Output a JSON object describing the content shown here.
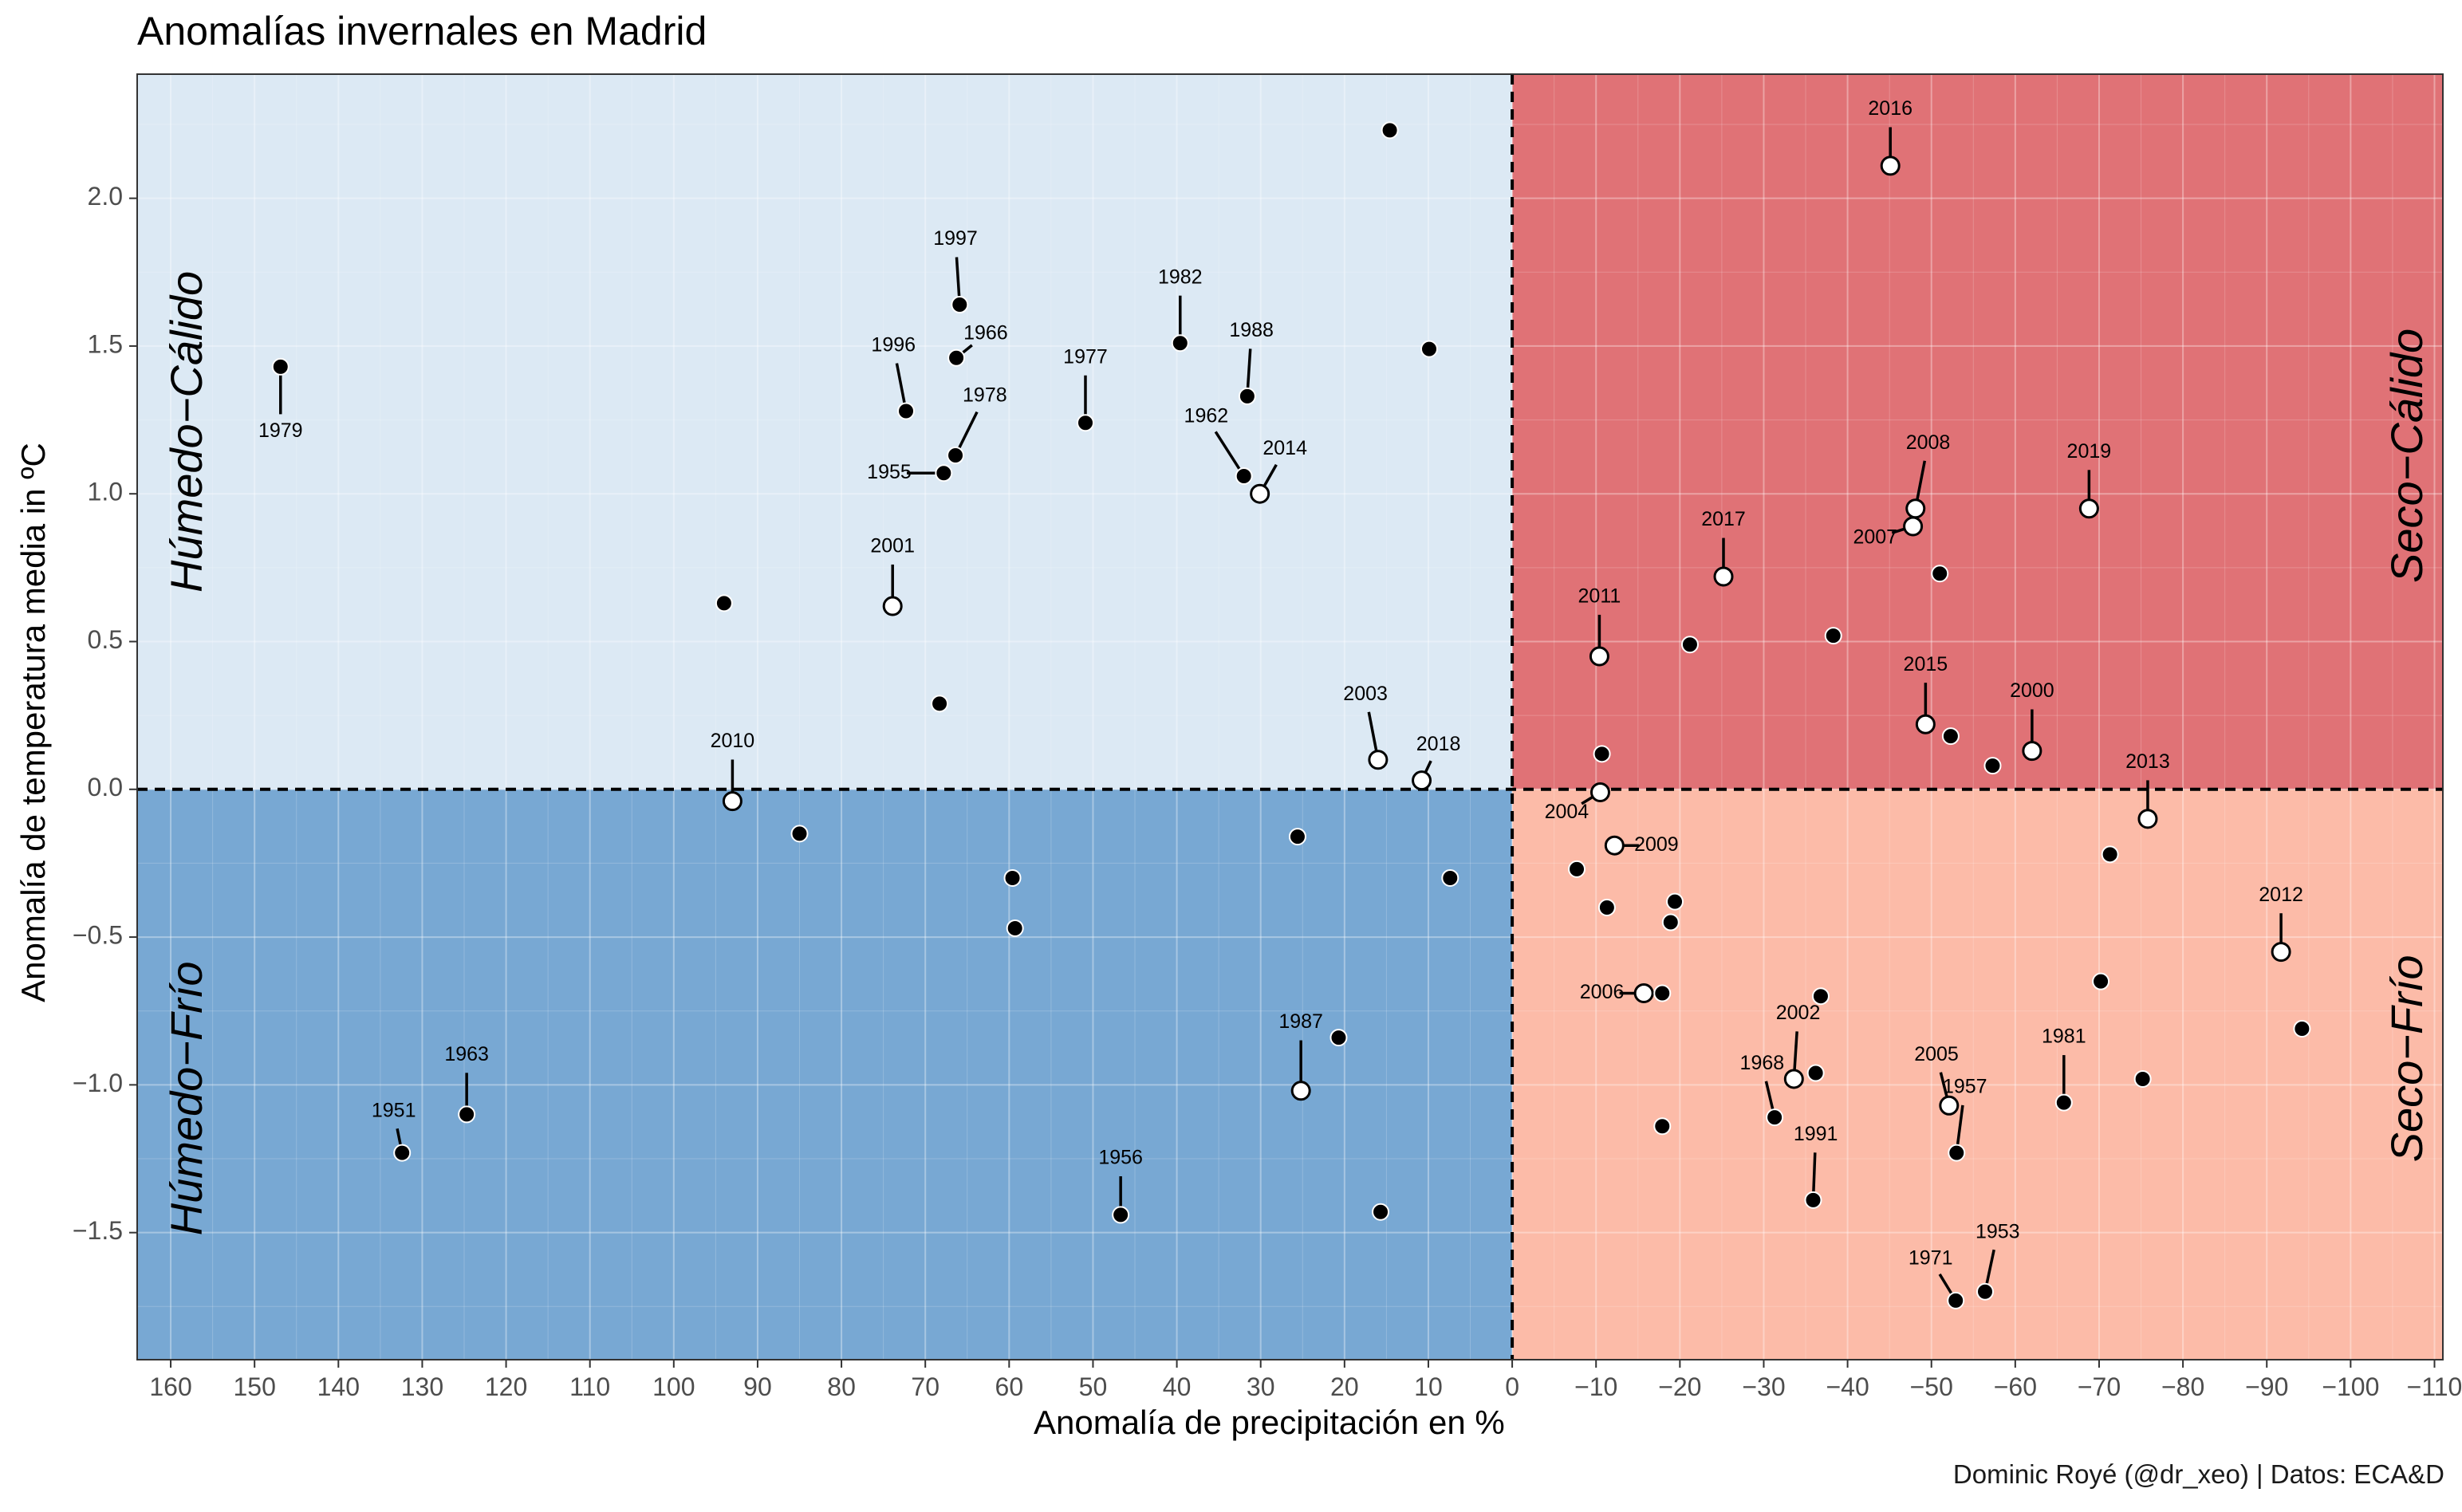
{
  "title": "Anomalías invernales en Madrid",
  "caption": "Dominic Royé (@dr_xeo) | Datos: ECA&D",
  "chart_data": {
    "type": "scatter",
    "title": "Anomalías invernales en Madrid",
    "xlabel": "Anomalía de precipitación en %",
    "ylabel": "Anomalía de temperatura media in ºC",
    "xlim": [
      164,
      -111
    ],
    "ylim": [
      -1.93,
      2.42
    ],
    "x_reversed": true,
    "xticks": [
      160,
      150,
      140,
      130,
      120,
      110,
      100,
      90,
      80,
      70,
      60,
      50,
      40,
      30,
      20,
      10,
      0,
      -10,
      -20,
      -30,
      -40,
      -50,
      -60,
      -70,
      -80,
      -90,
      -100,
      -110
    ],
    "xtick_labels": [
      "160",
      "150",
      "140",
      "130",
      "120",
      "110",
      "100",
      "90",
      "80",
      "70",
      "60",
      "50",
      "40",
      "30",
      "20",
      "10",
      "0",
      "−10",
      "−20",
      "−30",
      "−40",
      "−50",
      "−60",
      "−70",
      "−80",
      "−90",
      "−100",
      "−110"
    ],
    "yticks": [
      2.0,
      1.5,
      1.0,
      0.5,
      0.0,
      -0.5,
      -1.0,
      -1.5
    ],
    "ytick_labels": [
      "2.0",
      "1.5",
      "1.0",
      "0.5",
      "0.0",
      "−0.5",
      "−1.0",
      "−1.5"
    ],
    "quadrants": [
      {
        "name": "Húmedo−Cálido",
        "side": "left",
        "sign": "warm",
        "color": "#dce9f4"
      },
      {
        "name": "Húmedo−Frío",
        "side": "left",
        "sign": "cold",
        "color": "#78a8d3"
      },
      {
        "name": "Seco−Cálido",
        "side": "right",
        "sign": "warm",
        "color": "#e07276"
      },
      {
        "name": "Seco−Frío",
        "side": "right",
        "sign": "cold",
        "color": "#fcbba8"
      }
    ],
    "reference_lines": {
      "x": 0,
      "y": 0,
      "style": "dashed"
    },
    "points": [
      {
        "x": 146.9,
        "y": 1.43,
        "fill": "black",
        "label": "1979",
        "ldx": 0,
        "ldy": -0.22
      },
      {
        "x": 72.3,
        "y": 1.28,
        "fill": "black",
        "label": "1996",
        "ldx": 1.5,
        "ldy": 0.22
      },
      {
        "x": 65.9,
        "y": 1.64,
        "fill": "black",
        "label": "1997",
        "ldx": 0.5,
        "ldy": 0.22
      },
      {
        "x": 66.3,
        "y": 1.46,
        "fill": "black",
        "label": "1966",
        "ldx": -3.5,
        "ldy": 0.08
      },
      {
        "x": 66.4,
        "y": 1.13,
        "fill": "black",
        "label": "1978",
        "ldx": -3.5,
        "ldy": 0.2
      },
      {
        "x": 67.8,
        "y": 1.07,
        "fill": "black",
        "label": "1955",
        "ldx": 6.5,
        "ldy": 0.0
      },
      {
        "x": 50.9,
        "y": 1.24,
        "fill": "black",
        "label": "1977",
        "ldx": 0,
        "ldy": 0.22
      },
      {
        "x": 39.6,
        "y": 1.51,
        "fill": "black",
        "label": "1982",
        "ldx": 0,
        "ldy": 0.22
      },
      {
        "x": 31.6,
        "y": 1.33,
        "fill": "black",
        "label": "1988",
        "ldx": -0.5,
        "ldy": 0.22
      },
      {
        "x": 32.0,
        "y": 1.06,
        "fill": "black",
        "label": "1962",
        "ldx": 4.5,
        "ldy": 0.2
      },
      {
        "x": 30.1,
        "y": 1.0,
        "fill": "white",
        "label": "2014",
        "ldx": -3,
        "ldy": 0.15
      },
      {
        "x": 73.9,
        "y": 0.62,
        "fill": "white",
        "label": "2001",
        "ldx": 0,
        "ldy": 0.2
      },
      {
        "x": 14.6,
        "y": 2.23,
        "fill": "black"
      },
      {
        "x": 9.9,
        "y": 1.49,
        "fill": "black"
      },
      {
        "x": 94.0,
        "y": 0.63,
        "fill": "black"
      },
      {
        "x": 68.3,
        "y": 0.29,
        "fill": "black"
      },
      {
        "x": 16.0,
        "y": 0.1,
        "fill": "white",
        "label": "2003",
        "ldx": 1.5,
        "ldy": 0.22
      },
      {
        "x": 10.8,
        "y": 0.03,
        "fill": "white",
        "label": "2018",
        "ldx": -2,
        "ldy": 0.12
      },
      {
        "x": 93.0,
        "y": -0.04,
        "fill": "white",
        "label": "2010",
        "ldx": 0,
        "ldy": 0.2
      },
      {
        "x": 85.0,
        "y": -0.15,
        "fill": "black"
      },
      {
        "x": 59.6,
        "y": -0.3,
        "fill": "black"
      },
      {
        "x": 59.3,
        "y": -0.47,
        "fill": "black"
      },
      {
        "x": 25.6,
        "y": -0.16,
        "fill": "black"
      },
      {
        "x": 7.4,
        "y": -0.3,
        "fill": "black"
      },
      {
        "x": 20.7,
        "y": -0.84,
        "fill": "black"
      },
      {
        "x": 25.2,
        "y": -1.02,
        "fill": "white",
        "label": "1987",
        "ldx": 0,
        "ldy": 0.23
      },
      {
        "x": 15.7,
        "y": -1.43,
        "fill": "black"
      },
      {
        "x": 46.7,
        "y": -1.44,
        "fill": "black",
        "label": "1956",
        "ldx": 0,
        "ldy": 0.19
      },
      {
        "x": 124.7,
        "y": -1.1,
        "fill": "black",
        "label": "1963",
        "ldx": 0,
        "ldy": 0.2
      },
      {
        "x": 132.4,
        "y": -1.23,
        "fill": "black",
        "label": "1951",
        "ldx": 1,
        "ldy": 0.14
      },
      {
        "x": -45.1,
        "y": 2.11,
        "fill": "white",
        "label": "2016",
        "ldx": 0,
        "ldy": 0.19
      },
      {
        "x": -25.2,
        "y": 0.72,
        "fill": "white",
        "label": "2017",
        "ldx": 0,
        "ldy": 0.19
      },
      {
        "x": -48.1,
        "y": 0.95,
        "fill": "white",
        "label": "2008",
        "ldx": -1.5,
        "ldy": 0.22
      },
      {
        "x": -47.8,
        "y": 0.89,
        "fill": "white",
        "label": "2007",
        "ldx": 4.5,
        "ldy": -0.04
      },
      {
        "x": -51.0,
        "y": 0.73,
        "fill": "black"
      },
      {
        "x": -68.8,
        "y": 0.95,
        "fill": "white",
        "label": "2019",
        "ldx": 0,
        "ldy": 0.19
      },
      {
        "x": -10.4,
        "y": 0.45,
        "fill": "white",
        "label": "2011",
        "ldx": 0,
        "ldy": 0.2
      },
      {
        "x": -21.2,
        "y": 0.49,
        "fill": "black"
      },
      {
        "x": -38.3,
        "y": 0.52,
        "fill": "black"
      },
      {
        "x": -49.3,
        "y": 0.22,
        "fill": "white",
        "label": "2015",
        "ldx": 0,
        "ldy": 0.2
      },
      {
        "x": -52.3,
        "y": 0.18,
        "fill": "black"
      },
      {
        "x": -62.0,
        "y": 0.13,
        "fill": "white",
        "label": "2000",
        "ldx": 0,
        "ldy": 0.2
      },
      {
        "x": -57.3,
        "y": 0.08,
        "fill": "black"
      },
      {
        "x": -10.7,
        "y": 0.12,
        "fill": "black"
      },
      {
        "x": -10.5,
        "y": -0.01,
        "fill": "white",
        "label": "2004",
        "ldx": 4,
        "ldy": -0.07
      },
      {
        "x": -75.8,
        "y": -0.1,
        "fill": "white",
        "label": "2013",
        "ldx": 0,
        "ldy": 0.19
      },
      {
        "x": -12.2,
        "y": -0.19,
        "fill": "white",
        "label": "2009",
        "ldx": -5,
        "ldy": 0.0
      },
      {
        "x": -71.3,
        "y": -0.22,
        "fill": "black"
      },
      {
        "x": -7.7,
        "y": -0.27,
        "fill": "black"
      },
      {
        "x": -11.3,
        "y": -0.4,
        "fill": "black"
      },
      {
        "x": -19.4,
        "y": -0.38,
        "fill": "black"
      },
      {
        "x": -18.9,
        "y": -0.45,
        "fill": "black"
      },
      {
        "x": -91.7,
        "y": -0.55,
        "fill": "white",
        "label": "2012",
        "ldx": 0,
        "ldy": 0.19
      },
      {
        "x": -70.2,
        "y": -0.65,
        "fill": "black"
      },
      {
        "x": -94.2,
        "y": -0.81,
        "fill": "black"
      },
      {
        "x": -15.7,
        "y": -0.69,
        "fill": "white",
        "label": "2006",
        "ldx": 5,
        "ldy": 0.0
      },
      {
        "x": -17.9,
        "y": -0.69,
        "fill": "black"
      },
      {
        "x": -36.8,
        "y": -0.7,
        "fill": "black"
      },
      {
        "x": -33.6,
        "y": -0.98,
        "fill": "white",
        "label": "2002",
        "ldx": -0.5,
        "ldy": 0.22
      },
      {
        "x": -31.3,
        "y": -1.11,
        "fill": "black",
        "label": "1968",
        "ldx": 1.5,
        "ldy": 0.18
      },
      {
        "x": -36.2,
        "y": -0.96,
        "fill": "black"
      },
      {
        "x": -17.9,
        "y": -1.14,
        "fill": "black"
      },
      {
        "x": -52.1,
        "y": -1.07,
        "fill": "white",
        "label": "2005",
        "ldx": 1.5,
        "ldy": 0.17
      },
      {
        "x": -53.0,
        "y": -1.23,
        "fill": "black",
        "label": "1957",
        "ldx": -1,
        "ldy": 0.22
      },
      {
        "x": -65.8,
        "y": -1.06,
        "fill": "black",
        "label": "1981",
        "ldx": 0,
        "ldy": 0.22
      },
      {
        "x": -75.2,
        "y": -0.98,
        "fill": "black"
      },
      {
        "x": -35.9,
        "y": -1.39,
        "fill": "black",
        "label": "1991",
        "ldx": -0.3,
        "ldy": 0.22
      },
      {
        "x": -56.4,
        "y": -1.7,
        "fill": "black",
        "label": "1953",
        "ldx": -1.5,
        "ldy": 0.2
      },
      {
        "x": -52.9,
        "y": -1.73,
        "fill": "black",
        "label": "1971",
        "ldx": 3,
        "ldy": 0.14
      }
    ]
  }
}
